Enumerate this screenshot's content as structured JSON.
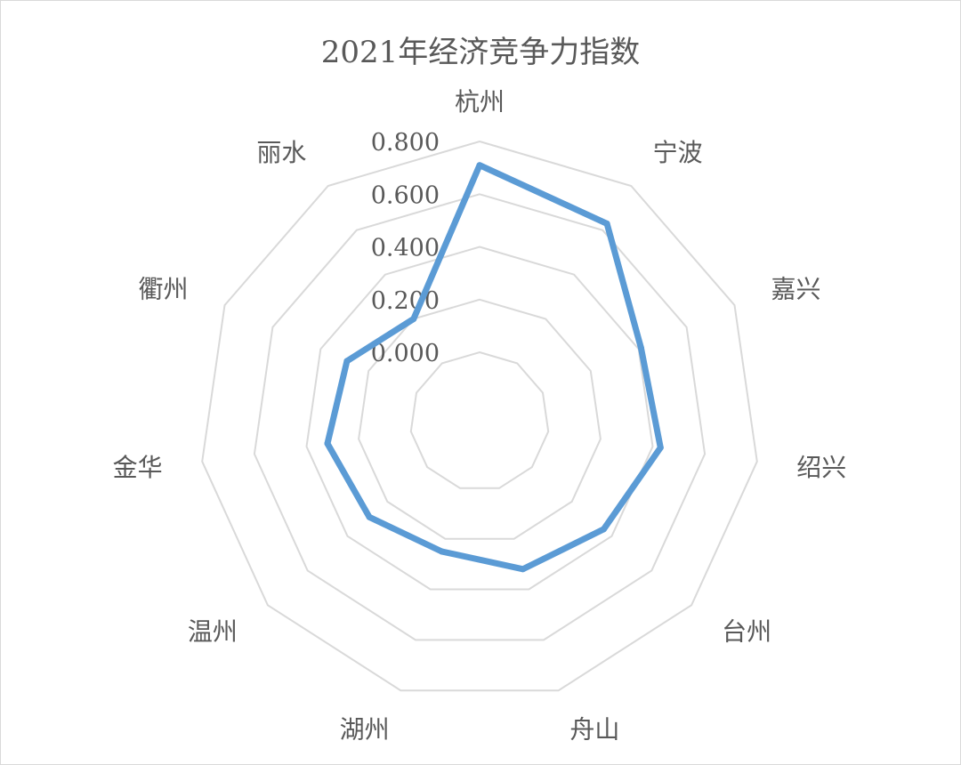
{
  "chart_data": {
    "type": "radar",
    "title": "2021年经济竞争力指数",
    "categories": [
      "杭州",
      "宁波",
      "嘉兴",
      "绍兴",
      "台州",
      "舟山",
      "湖州",
      "温州",
      "金华",
      "衢州",
      "丽水"
    ],
    "rlim": [
      0,
      0.8
    ],
    "ticks": [
      0.0,
      0.2,
      0.4,
      0.6,
      0.8
    ],
    "tick_labels": [
      "0.000",
      "0.200",
      "0.400",
      "0.600",
      "0.800"
    ],
    "grid": true,
    "series": [
      {
        "values": [
          0.71,
          0.63,
          0.41,
          0.43,
          0.36,
          0.32,
          0.25,
          0.29,
          0.32,
          0.29,
          0.2
        ]
      }
    ],
    "colors": {
      "series": "#5b9bd5",
      "grid": "#d9d9d9",
      "text": "#595959"
    }
  }
}
